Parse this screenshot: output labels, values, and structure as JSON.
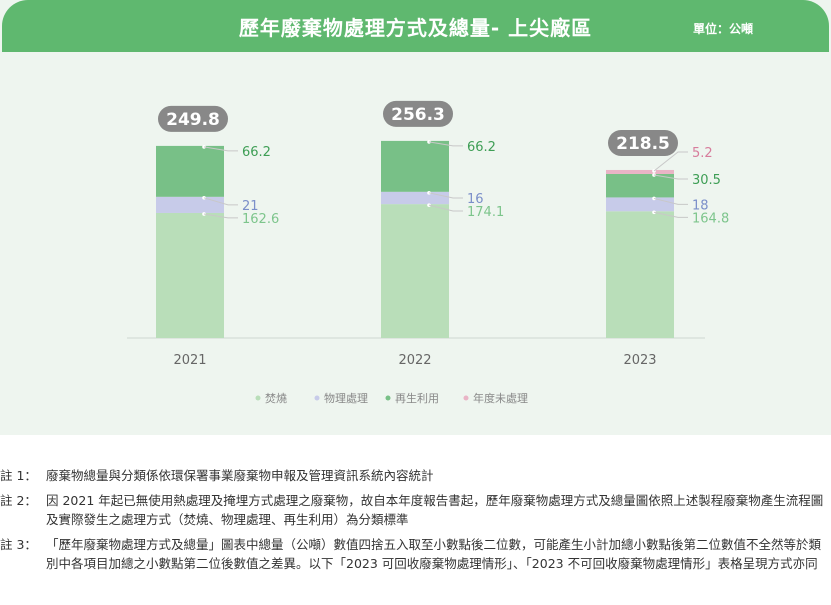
{
  "header": {
    "title": "歷年廢棄物處理方式及總量- 上尖廠區",
    "unit": "單位：公噸"
  },
  "colors": {
    "header_bg": "#5fb86f",
    "panel_bg": "#eef5ef",
    "incineration": "#b9deb9",
    "physical": "#c7cbe9",
    "recycling": "#78c087",
    "untreated": "#e9b4c6",
    "total_badge": "#888888"
  },
  "chart_data": {
    "type": "bar",
    "stacked": true,
    "categories": [
      "2021",
      "2022",
      "2023"
    ],
    "series": [
      {
        "name": "焚燒",
        "values": [
          162.6,
          174.1,
          164.8
        ],
        "color": "#b9deb9",
        "label_color": "#7dc58c"
      },
      {
        "name": "物理處理",
        "values": [
          21,
          16,
          18
        ],
        "color": "#c7cbe9",
        "label_color": "#7b8fc9"
      },
      {
        "name": "再生利用",
        "values": [
          66.2,
          66.2,
          30.5
        ],
        "color": "#78c087",
        "label_color": "#3e9e55"
      },
      {
        "name": "年度未處理",
        "values": [
          0,
          0,
          5.2
        ],
        "color": "#e9b4c6",
        "label_color": "#d77d9c"
      }
    ],
    "totals": [
      "249.8",
      "256.3",
      "218.5"
    ],
    "legend_position": "bottom-center",
    "grid": false
  },
  "notes": [
    {
      "label": "註 1：",
      "text": "廢棄物總量與分類係依環保署事業廢棄物申報及管理資訊系統內容統計"
    },
    {
      "label": "註 2：",
      "text": "因 2021 年起已無使用熱處理及掩埋方式處理之廢棄物，故自本年度報告書起，歷年廢棄物處理方式及總量圖依照上述製程廢棄物產生流程圖及實際發生之處理方式（焚燒、物理處理、再生利用）為分類標準"
    },
    {
      "label": "註 3：",
      "text": "「歷年廢棄物處理方式及總量」圖表中總量（公噸）數值四捨五入取至小數點後二位數，可能產生小計加總小數點後第二位數值不全然等於類別中各項目加總之小數點第二位後數值之差異。以下「2023 可回收廢棄物處理情形」、「2023 不可回收廢棄物處理情形」表格呈現方式亦同"
    }
  ]
}
